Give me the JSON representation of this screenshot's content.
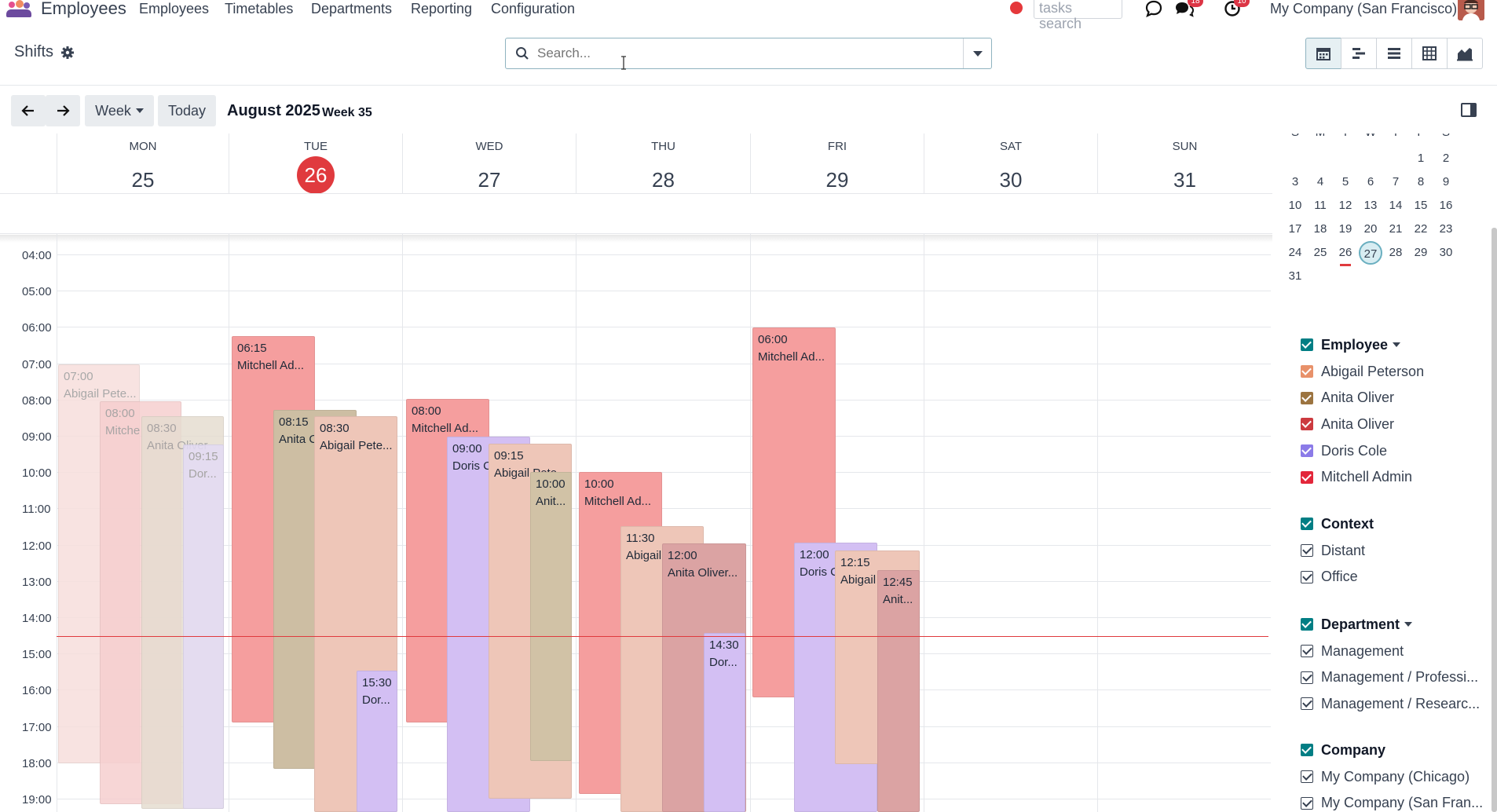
{
  "app": {
    "name": "Employees",
    "menu": [
      "Employees",
      "Timetables",
      "Departments",
      "Reporting",
      "Configuration"
    ],
    "tasks_search_placeholder": "tasks search",
    "messages_badge": "18",
    "activities_badge": "10",
    "company": "My Company (San Francisco)"
  },
  "control": {
    "title": "Shifts",
    "search_placeholder": "Search...",
    "views": [
      "calendar-icon",
      "gantt-icon",
      "list-icon",
      "pivot-icon",
      "graph-icon"
    ]
  },
  "toolbar": {
    "scale": "Week",
    "today": "Today",
    "period": "August 2025",
    "week": "Week 35"
  },
  "colors": {
    "today": "#e03a3e",
    "accent": "#017e84"
  },
  "calendar": {
    "days": [
      {
        "name": "MON",
        "num": "25"
      },
      {
        "name": "TUE",
        "num": "26",
        "today": true
      },
      {
        "name": "WED",
        "num": "27"
      },
      {
        "name": "THU",
        "num": "28"
      },
      {
        "name": "FRI",
        "num": "29"
      },
      {
        "name": "SAT",
        "num": "30"
      },
      {
        "name": "SUN",
        "num": "31"
      }
    ],
    "hours": [
      "04:00",
      "05:00",
      "06:00",
      "07:00",
      "08:00",
      "09:00",
      "10:00",
      "11:00",
      "12:00",
      "13:00",
      "14:00",
      "15:00",
      "16:00",
      "17:00",
      "18:00",
      "19:00"
    ],
    "events": [
      {
        "time": "07:00",
        "title": "Abigail Pete...",
        "faded": true
      },
      {
        "time": "08:00",
        "title": "Mitche",
        "faded": true
      },
      {
        "time": "08:30",
        "title": "Anita Oliver",
        "faded": true
      },
      {
        "time": "09:15",
        "title": "Dor...",
        "faded": true
      },
      {
        "time": "06:15",
        "title": "Mitchell Ad..."
      },
      {
        "time": "08:15",
        "title": "Anita C"
      },
      {
        "time": "08:30",
        "title": "Abigail Pete..."
      },
      {
        "time": "15:30",
        "title": "Dor..."
      },
      {
        "time": "08:00",
        "title": "Mitchell Ad..."
      },
      {
        "time": "09:00",
        "title": "Doris C"
      },
      {
        "time": "09:15",
        "title": "Abigail Pete"
      },
      {
        "time": "10:00",
        "title": "Anit..."
      },
      {
        "time": "10:00",
        "title": "Mitchell Ad..."
      },
      {
        "time": "11:30",
        "title": "Abigail"
      },
      {
        "time": "12:00",
        "title": "Anita Oliver..."
      },
      {
        "time": "14:30",
        "title": "Dor..."
      },
      {
        "time": "06:00",
        "title": "Mitchell Ad..."
      },
      {
        "time": "12:00",
        "title": "Doris C"
      },
      {
        "time": "12:15",
        "title": "Abigail"
      },
      {
        "time": "12:45",
        "title": "Anit..."
      }
    ]
  },
  "mini_calendar": {
    "weekdays": [
      "S",
      "M",
      "T",
      "W",
      "T",
      "F",
      "S"
    ],
    "weeks": [
      [
        "",
        "",
        "",
        "",
        "",
        "1",
        "2"
      ],
      [
        "3",
        "4",
        "5",
        "6",
        "7",
        "8",
        "9"
      ],
      [
        "10",
        "11",
        "12",
        "13",
        "14",
        "15",
        "16"
      ],
      [
        "17",
        "18",
        "19",
        "20",
        "21",
        "22",
        "23"
      ],
      [
        "24",
        "25",
        "26",
        "27",
        "28",
        "29",
        "30"
      ],
      [
        "31",
        "",
        "",
        "",
        "",
        "",
        ""
      ]
    ]
  },
  "filters": {
    "employee": {
      "title": "Employee",
      "items": [
        {
          "label": "Abigail Peterson",
          "color": "#e8916a"
        },
        {
          "label": "Anita Oliver",
          "color": "#9c7440"
        },
        {
          "label": "Anita Oliver",
          "color": "#cc3a3f"
        },
        {
          "label": "Doris Cole",
          "color": "#8b7be8"
        },
        {
          "label": "Mitchell Admin",
          "color": "#e3263a"
        }
      ]
    },
    "context": {
      "title": "Context",
      "items": [
        "Distant",
        "Office"
      ]
    },
    "department": {
      "title": "Department",
      "items": [
        "Management",
        "Management / Professi...",
        "Management / Researc..."
      ]
    },
    "company": {
      "title": "Company",
      "items": [
        "My Company (Chicago)",
        "My Company (San Fran..."
      ]
    }
  }
}
